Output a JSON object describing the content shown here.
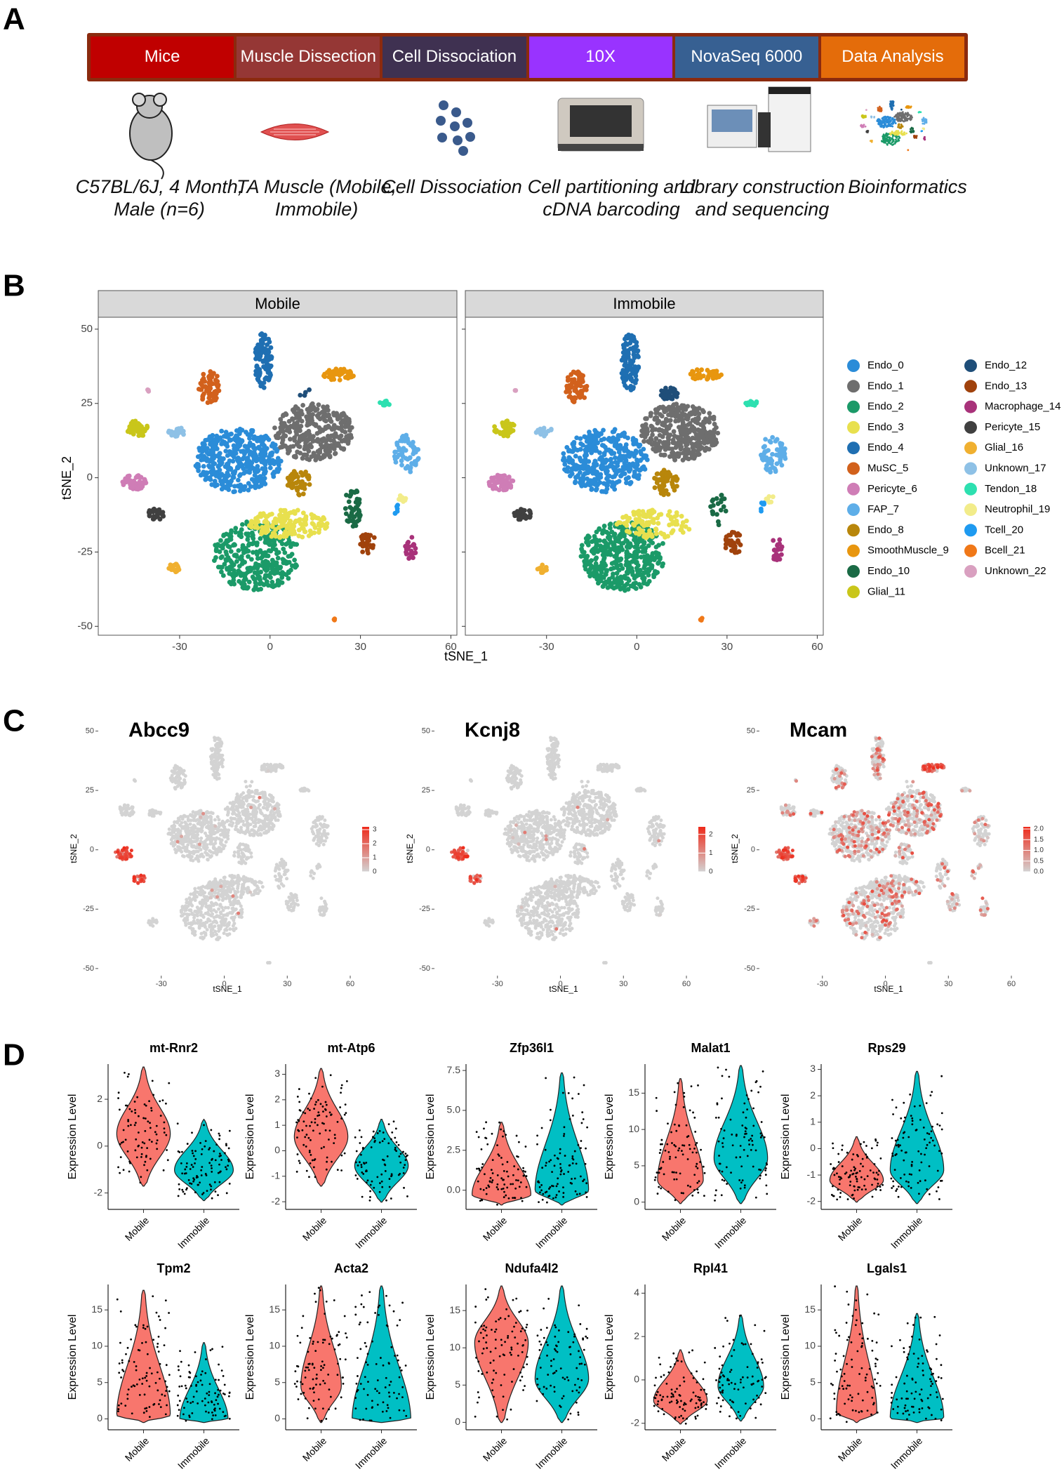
{
  "panel_labels": [
    "A",
    "B",
    "C",
    "D"
  ],
  "pipeline": {
    "steps": [
      {
        "label": "Mice",
        "color": "#c00000",
        "description": "C57BL/6J, 4 Month, Male (n=6)"
      },
      {
        "label": "Muscle Dissection",
        "color": "#953735",
        "description": "TA Muscle (Mobile, Immobile)"
      },
      {
        "label": "Cell Dissociation",
        "color": "#3f3151",
        "description": "Cell Dissociation"
      },
      {
        "label": "10X",
        "color": "#9933ff",
        "description": "Cell partitioning and cDNA barcoding"
      },
      {
        "label": "NovaSeq 6000",
        "color": "#376092",
        "description": "Library construction and sequencing"
      },
      {
        "label": "Data Analysis",
        "color": "#e46c0a",
        "description": "Bioinformatics"
      }
    ]
  },
  "panel_b": {
    "facets": [
      "Mobile",
      "Immobile"
    ],
    "x_label": "tSNE_1",
    "y_label": "tSNE_2",
    "xlim": [
      -57,
      62
    ],
    "ylim": [
      -53,
      54
    ],
    "xticks": [
      -30,
      0,
      30,
      60
    ],
    "yticks": [
      -50,
      -25,
      0,
      25,
      50
    ],
    "clusters": [
      {
        "name": "Endo_0",
        "color": "#2b8cd8"
      },
      {
        "name": "Endo_1",
        "color": "#6e6e6e"
      },
      {
        "name": "Endo_2",
        "color": "#1b9a68"
      },
      {
        "name": "Endo_3",
        "color": "#e8e04e"
      },
      {
        "name": "Endo_4",
        "color": "#1f6fb2"
      },
      {
        "name": "MuSC_5",
        "color": "#d2611c"
      },
      {
        "name": "Pericyte_6",
        "color": "#cf7db6"
      },
      {
        "name": "FAP_7",
        "color": "#5eaee8"
      },
      {
        "name": "Endo_8",
        "color": "#b8860b"
      },
      {
        "name": "SmoothMuscle_9",
        "color": "#e8960f"
      },
      {
        "name": "Endo_10",
        "color": "#1a6a45"
      },
      {
        "name": "Glial_11",
        "color": "#c9c61a"
      },
      {
        "name": "Endo_12",
        "color": "#1f4e79"
      },
      {
        "name": "Endo_13",
        "color": "#a0420c"
      },
      {
        "name": "Macrophage_14",
        "color": "#a8327a"
      },
      {
        "name": "Pericyte_15",
        "color": "#404040"
      },
      {
        "name": "Glial_16",
        "color": "#f0b030"
      },
      {
        "name": "Unknown_17",
        "color": "#8ec1e6"
      },
      {
        "name": "Tendon_18",
        "color": "#2de0b0"
      },
      {
        "name": "Neutrophil_19",
        "color": "#f2ec8a"
      },
      {
        "name": "Tcell_20",
        "color": "#1e9af0"
      },
      {
        "name": "Bcell_21",
        "color": "#f07818"
      },
      {
        "name": "Unknown_22",
        "color": "#d9a0c0"
      }
    ]
  },
  "panel_c": {
    "x_label": "tSNE_1",
    "y_label": "tSNE_2",
    "xlim": [
      -60,
      63
    ],
    "ylim": [
      -53,
      54
    ],
    "xticks": [
      -30,
      0,
      30,
      60
    ],
    "yticks": [
      -50,
      -25,
      0,
      25,
      50
    ],
    "low_color": "#d3d3d3",
    "high_color": "#ee2a1a",
    "plots": [
      {
        "gene": "Abcc9",
        "scale_lim": [
          0,
          3.2
        ],
        "scale_ticks": [
          0,
          1,
          2,
          3
        ]
      },
      {
        "gene": "Kcnj8",
        "scale_lim": [
          0,
          2.4
        ],
        "scale_ticks": [
          0,
          1,
          2
        ]
      },
      {
        "gene": "Mcam",
        "scale_lim": [
          0,
          2.1
        ],
        "scale_ticks": [
          {
            "value": 0,
            "label": "0.0"
          },
          {
            "value": 0.5,
            "label": "0.5"
          },
          {
            "value": 1,
            "label": "1.0"
          },
          {
            "value": 1.5,
            "label": "1.5"
          },
          {
            "value": 2,
            "label": "2.0"
          }
        ]
      }
    ]
  },
  "panel_d": {
    "y_label": "Expression Level",
    "groups": [
      {
        "name": "Mobile",
        "color": "#f8766d"
      },
      {
        "name": "Immobile",
        "color": "#00bfc4"
      }
    ],
    "plots": [
      {
        "gene": "mt-Rnr2",
        "ylim": [
          -2.7,
          3.5
        ],
        "yticks": [
          -2,
          0,
          2
        ]
      },
      {
        "gene": "mt-Atp6",
        "ylim": [
          -2.3,
          3.4
        ],
        "yticks": [
          -2,
          -1,
          0,
          1,
          2,
          3
        ]
      },
      {
        "gene": "Zfp36l1",
        "ylim": [
          -1.2,
          7.9
        ],
        "yticks": [
          {
            "value": 0,
            "label": "0.0"
          },
          {
            "value": 2.5,
            "label": "2.5"
          },
          {
            "value": 5,
            "label": "5.0"
          },
          {
            "value": 7.5,
            "label": "7.5"
          }
        ]
      },
      {
        "gene": "Malat1",
        "ylim": [
          -1,
          19
        ],
        "yticks": [
          0,
          5,
          10,
          15
        ]
      },
      {
        "gene": "Rps29",
        "ylim": [
          -2.3,
          3.2
        ],
        "yticks": [
          -2,
          -1,
          0,
          1,
          2,
          3
        ]
      },
      {
        "gene": "Tpm2",
        "ylim": [
          -1.5,
          18.5
        ],
        "yticks": [
          0,
          5,
          10,
          15
        ]
      },
      {
        "gene": "Acta2",
        "ylim": [
          -1.5,
          18.5
        ],
        "yticks": [
          0,
          5,
          10,
          15
        ]
      },
      {
        "gene": "Ndufa4l2",
        "ylim": [
          -1,
          18.5
        ],
        "yticks": [
          0,
          5,
          10,
          15
        ]
      },
      {
        "gene": "Rpl41",
        "ylim": [
          -2.3,
          4.4
        ],
        "yticks": [
          -2,
          0,
          2,
          4
        ]
      },
      {
        "gene": "Lgals1",
        "ylim": [
          -1.5,
          18.5
        ],
        "yticks": [
          0,
          5,
          10,
          15
        ]
      }
    ]
  }
}
